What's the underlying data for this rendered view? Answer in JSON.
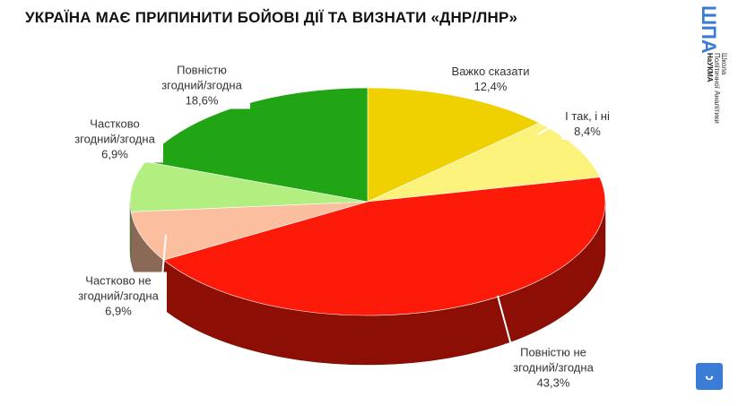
{
  "chart_data": {
    "type": "pie3d",
    "title": "УКРАЇНА МАЄ ПРИПИНИТИ БОЙОВІ ДІЇ ТА ВИЗНАТИ «ДНР/ЛНР»",
    "categories": [
      "Важко сказати",
      "І так, і ні",
      "Повністю не згодний/згодна",
      "Частково не згодний/згодна",
      "Частково згодний/згодна",
      "Повністю згодний/згодна"
    ],
    "values": [
      12.4,
      8.4,
      43.3,
      6.9,
      6.9,
      18.6
    ],
    "value_labels": [
      "12,4%",
      "8,4%",
      "43,3%",
      "6,9%",
      "6,9%",
      "18,6%"
    ],
    "colors": [
      "#efd000",
      "#fbf27c",
      "#fe1a08",
      "#fbbe9e",
      "#b2ee80",
      "#22a514"
    ],
    "logo": {
      "mark": "ШПА",
      "line1": "Школа",
      "line2": "Політичної Аналітики",
      "line3": "НаУКМА"
    }
  }
}
